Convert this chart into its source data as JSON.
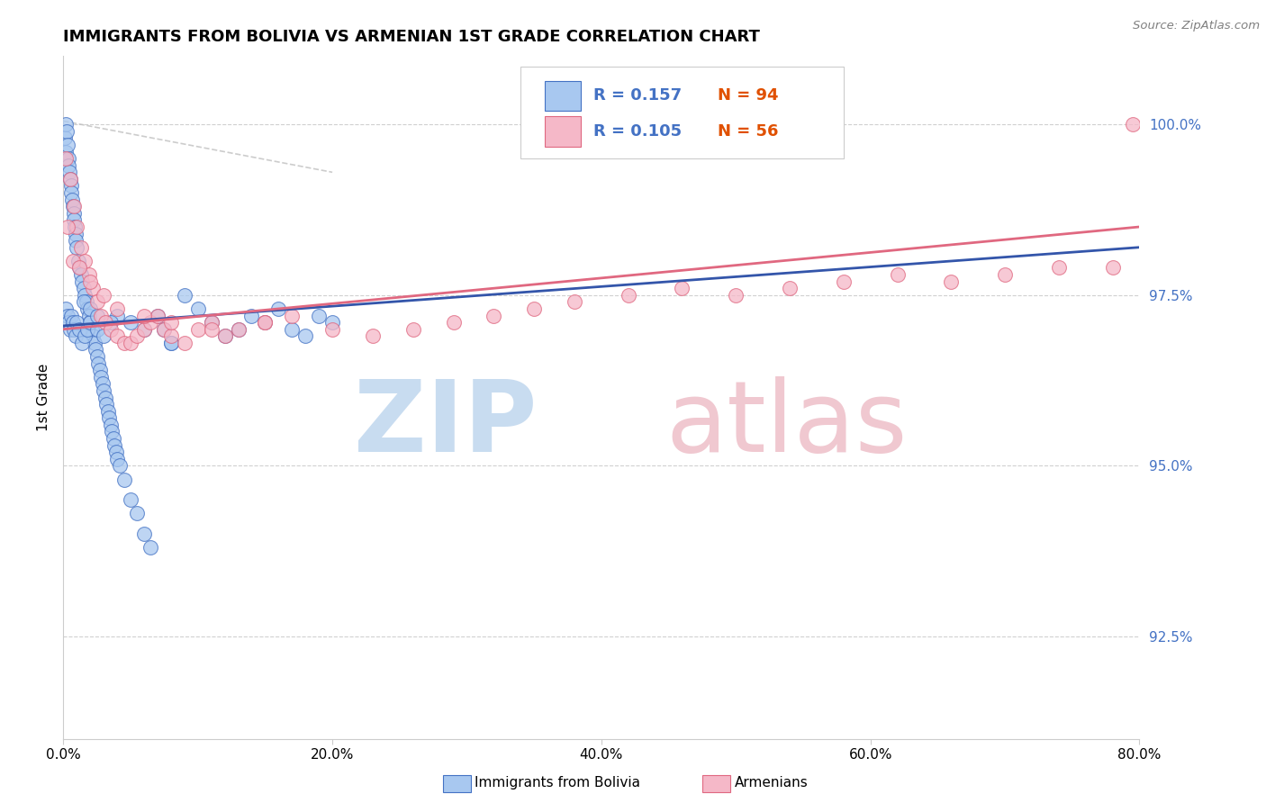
{
  "title": "IMMIGRANTS FROM BOLIVIA VS ARMENIAN 1ST GRADE CORRELATION CHART",
  "source": "Source: ZipAtlas.com",
  "ylabel": "1st Grade",
  "r_bolivia": 0.157,
  "n_bolivia": 94,
  "r_armenian": 0.105,
  "n_armenian": 56,
  "color_bolivia_fill": "#A8C8F0",
  "color_bolivia_edge": "#4472C4",
  "color_armenian_fill": "#F5B8C8",
  "color_armenian_edge": "#E06880",
  "color_line_bolivia": "#3355AA",
  "color_line_armenian": "#E06880",
  "color_diag": "#C0C0C0",
  "color_grid": "#D0D0D0",
  "color_ytick": "#4472C4",
  "x_min": 0.0,
  "x_max": 80.0,
  "y_min": 91.0,
  "y_max": 101.0,
  "y_ticks": [
    92.5,
    95.0,
    97.5,
    100.0
  ],
  "x_ticks": [
    0.0,
    20.0,
    40.0,
    60.0,
    80.0
  ],
  "bolivia_x": [
    0.1,
    0.15,
    0.2,
    0.25,
    0.3,
    0.35,
    0.4,
    0.45,
    0.5,
    0.55,
    0.6,
    0.65,
    0.7,
    0.75,
    0.8,
    0.85,
    0.9,
    0.95,
    1.0,
    1.1,
    1.2,
    1.3,
    1.4,
    1.5,
    1.6,
    1.7,
    1.8,
    1.9,
    2.0,
    2.1,
    2.2,
    2.3,
    2.4,
    2.5,
    2.6,
    2.7,
    2.8,
    2.9,
    3.0,
    3.1,
    3.2,
    3.3,
    3.4,
    3.5,
    3.6,
    3.7,
    3.8,
    3.9,
    4.0,
    4.2,
    4.5,
    5.0,
    5.5,
    6.0,
    6.5,
    7.0,
    7.5,
    8.0,
    9.0,
    10.0,
    11.0,
    12.0,
    13.0,
    14.0,
    15.0,
    16.0,
    17.0,
    18.0,
    19.0,
    20.0,
    0.2,
    0.3,
    0.4,
    0.5,
    0.6,
    0.7,
    0.8,
    0.9,
    1.0,
    1.2,
    1.4,
    1.6,
    1.8,
    2.0,
    2.5,
    3.0,
    4.0,
    5.0,
    6.0,
    8.0,
    1.5,
    2.0,
    2.5,
    3.5
  ],
  "bolivia_y": [
    99.8,
    99.6,
    100.0,
    99.9,
    99.7,
    99.5,
    99.4,
    99.3,
    99.2,
    99.1,
    99.0,
    98.9,
    98.8,
    98.7,
    98.6,
    98.5,
    98.4,
    98.3,
    98.2,
    98.0,
    97.9,
    97.8,
    97.7,
    97.6,
    97.5,
    97.4,
    97.3,
    97.2,
    97.1,
    97.0,
    96.9,
    96.8,
    96.7,
    96.6,
    96.5,
    96.4,
    96.3,
    96.2,
    96.1,
    96.0,
    95.9,
    95.8,
    95.7,
    95.6,
    95.5,
    95.4,
    95.3,
    95.2,
    95.1,
    95.0,
    94.8,
    94.5,
    94.3,
    94.0,
    93.8,
    97.2,
    97.0,
    96.8,
    97.5,
    97.3,
    97.1,
    96.9,
    97.0,
    97.2,
    97.1,
    97.3,
    97.0,
    96.9,
    97.2,
    97.1,
    97.3,
    97.2,
    97.1,
    97.0,
    97.2,
    97.1,
    97.0,
    96.9,
    97.1,
    97.0,
    96.8,
    96.9,
    97.0,
    97.1,
    97.0,
    96.9,
    97.2,
    97.1,
    97.0,
    96.8,
    97.4,
    97.3,
    97.2,
    97.1
  ],
  "armenian_x": [
    0.2,
    0.5,
    0.8,
    1.0,
    1.3,
    1.6,
    1.9,
    2.2,
    2.5,
    2.8,
    3.1,
    3.5,
    4.0,
    4.5,
    5.0,
    5.5,
    6.0,
    6.5,
    7.0,
    7.5,
    8.0,
    9.0,
    10.0,
    11.0,
    12.0,
    13.0,
    15.0,
    17.0,
    20.0,
    23.0,
    26.0,
    29.0,
    32.0,
    35.0,
    38.0,
    42.0,
    46.0,
    50.0,
    54.0,
    58.0,
    62.0,
    66.0,
    70.0,
    74.0,
    78.0,
    79.5,
    0.3,
    0.7,
    1.2,
    2.0,
    3.0,
    4.0,
    6.0,
    8.0,
    11.0,
    15.0
  ],
  "armenian_y": [
    99.5,
    99.2,
    98.8,
    98.5,
    98.2,
    98.0,
    97.8,
    97.6,
    97.4,
    97.2,
    97.1,
    97.0,
    96.9,
    96.8,
    96.8,
    96.9,
    97.0,
    97.1,
    97.2,
    97.0,
    96.9,
    96.8,
    97.0,
    97.1,
    96.9,
    97.0,
    97.1,
    97.2,
    97.0,
    96.9,
    97.0,
    97.1,
    97.2,
    97.3,
    97.4,
    97.5,
    97.6,
    97.5,
    97.6,
    97.7,
    97.8,
    97.7,
    97.8,
    97.9,
    97.9,
    100.0,
    98.5,
    98.0,
    97.9,
    97.7,
    97.5,
    97.3,
    97.2,
    97.1,
    97.0,
    97.1
  ],
  "line_bolivia_x0": 0.0,
  "line_bolivia_x1": 80.0,
  "line_bolivia_y0": 97.05,
  "line_bolivia_y1": 98.2,
  "line_armenian_x0": 0.0,
  "line_armenian_x1": 80.0,
  "line_armenian_y0": 97.0,
  "line_armenian_y1": 98.5,
  "diag_x0": 0.0,
  "diag_x1": 20.0,
  "diag_y0": 100.05,
  "diag_y1": 99.3,
  "watermark_zip_color": "#C8DCF0",
  "watermark_atlas_color": "#F0C8D0",
  "legend_r1_color": "#4472C4",
  "legend_n1_color": "#E05000",
  "legend_r2_color": "#4472C4",
  "legend_n2_color": "#E05000"
}
